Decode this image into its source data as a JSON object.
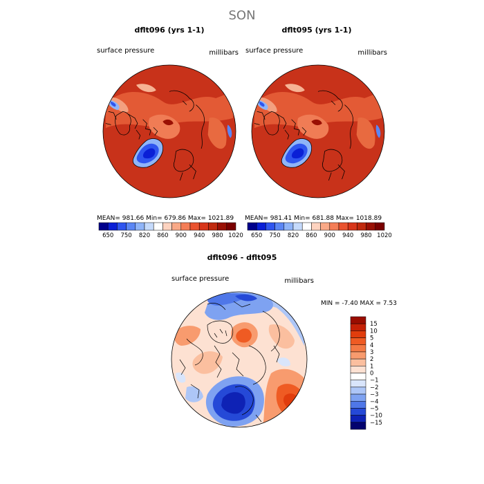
{
  "figure": {
    "season": "SON"
  },
  "maps": [
    {
      "title": "dflt096 (yrs 1-1)",
      "variable": "surface pressure",
      "units": "millibars",
      "stats": "MEAN=  981.66    Min=  679.86    Max= 1021.89"
    },
    {
      "title": "dflt095 (yrs 1-1)",
      "variable": "surface pressure",
      "units": "millibars",
      "stats": "MEAN=  981.41    Min=  681.88    Max= 1018.89"
    }
  ],
  "abs_colorbar": {
    "ticks": [
      "650",
      "750",
      "820",
      "860",
      "900",
      "940",
      "980",
      "1020"
    ],
    "colors": [
      "#00008c",
      "#0a1fd6",
      "#2f55ef",
      "#5b86f4",
      "#8fb4f8",
      "#c5dafb",
      "#ffffff",
      "#fdd3c0",
      "#f9a987",
      "#f47e57",
      "#ea5430",
      "#d8361a",
      "#c12a0e",
      "#9a1004",
      "#7a0000"
    ]
  },
  "diff_map": {
    "title": "dflt096 - dflt095",
    "variable": "surface pressure",
    "units": "millibars",
    "stats": "MIN =   -7.40  MAX =    7.53"
  },
  "diff_colorbar": {
    "levels": [
      "15",
      "10",
      "5",
      "4",
      "3",
      "2",
      "1",
      "0",
      "-1",
      "-2",
      "-3",
      "-4",
      "-5",
      "-10",
      "-15"
    ],
    "colors": [
      "#9a0d00",
      "#c52106",
      "#e13d0d",
      "#ef5b23",
      "#f47a45",
      "#f89b6e",
      "#fbbf9f",
      "#fde1d2",
      "#ffffff",
      "#d9e5fb",
      "#adc6f7",
      "#7ea2f1",
      "#4f77e8",
      "#2549d7",
      "#0e22b5",
      "#03036e"
    ]
  }
}
